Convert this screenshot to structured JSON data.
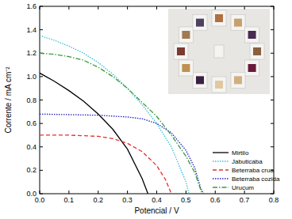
{
  "chart_data": {
    "type": "line",
    "x_label": "Potencial / V",
    "y_label": "Corrente / mA cm⁻²",
    "xlim": [
      0,
      0.8
    ],
    "ylim": [
      0,
      1.6
    ],
    "xticks": [
      {
        "value": 0,
        "label": "0.0"
      },
      0.1,
      0.2,
      0.3,
      0.4,
      0.5,
      0.6,
      0.7,
      0.8
    ],
    "yticks": [
      {
        "value": 0,
        "label": "0.0"
      },
      0.2,
      0.4,
      0.6,
      0.8,
      {
        "value": 1,
        "label": "1.0"
      },
      1.2,
      1.4,
      1.6
    ],
    "legend": "lower right",
    "grid": false,
    "series": [
      {
        "name": "Mirtilo",
        "color": "#000000",
        "line_style": "solid",
        "x": [
          0,
          0.05,
          0.1,
          0.15,
          0.2,
          0.25,
          0.3,
          0.35,
          0.37
        ],
        "values": [
          1.03,
          0.96,
          0.88,
          0.79,
          0.68,
          0.55,
          0.38,
          0.13,
          0
        ]
      },
      {
        "name": "Jabuticaba",
        "color": "#3cbfcf",
        "line_style": "dotted",
        "x": [
          0,
          0.05,
          0.1,
          0.15,
          0.2,
          0.25,
          0.3,
          0.35,
          0.4,
          0.45,
          0.5,
          0.51
        ],
        "values": [
          1.35,
          1.31,
          1.26,
          1.2,
          1.12,
          1.02,
          0.9,
          0.76,
          0.6,
          0.4,
          0.1,
          0
        ]
      },
      {
        "name": "Beterraba crua",
        "color": "#e03030",
        "line_style": "dashed",
        "x": [
          0,
          0.1,
          0.2,
          0.25,
          0.3,
          0.35,
          0.4,
          0.43,
          0.45
        ],
        "values": [
          0.5,
          0.5,
          0.49,
          0.47,
          0.43,
          0.36,
          0.24,
          0.12,
          0
        ]
      },
      {
        "name": "Beterraba cozida",
        "color": "#2020c0",
        "line_style": "dotted",
        "x": [
          0,
          0.1,
          0.2,
          0.3,
          0.35,
          0.4,
          0.45,
          0.5,
          0.53,
          0.55,
          0.56
        ],
        "values": [
          0.68,
          0.675,
          0.67,
          0.655,
          0.64,
          0.6,
          0.52,
          0.37,
          0.22,
          0.05,
          0
        ]
      },
      {
        "name": "Urucum",
        "color": "#3a9a3a",
        "line_style": "dash_dot",
        "x": [
          0,
          0.05,
          0.1,
          0.15,
          0.2,
          0.25,
          0.3,
          0.35,
          0.4,
          0.45,
          0.5,
          0.53,
          0.555
        ],
        "values": [
          1.2,
          1.19,
          1.17,
          1.14,
          1.08,
          1.0,
          0.9,
          0.78,
          0.66,
          0.5,
          0.32,
          0.18,
          0
        ]
      }
    ]
  }
}
